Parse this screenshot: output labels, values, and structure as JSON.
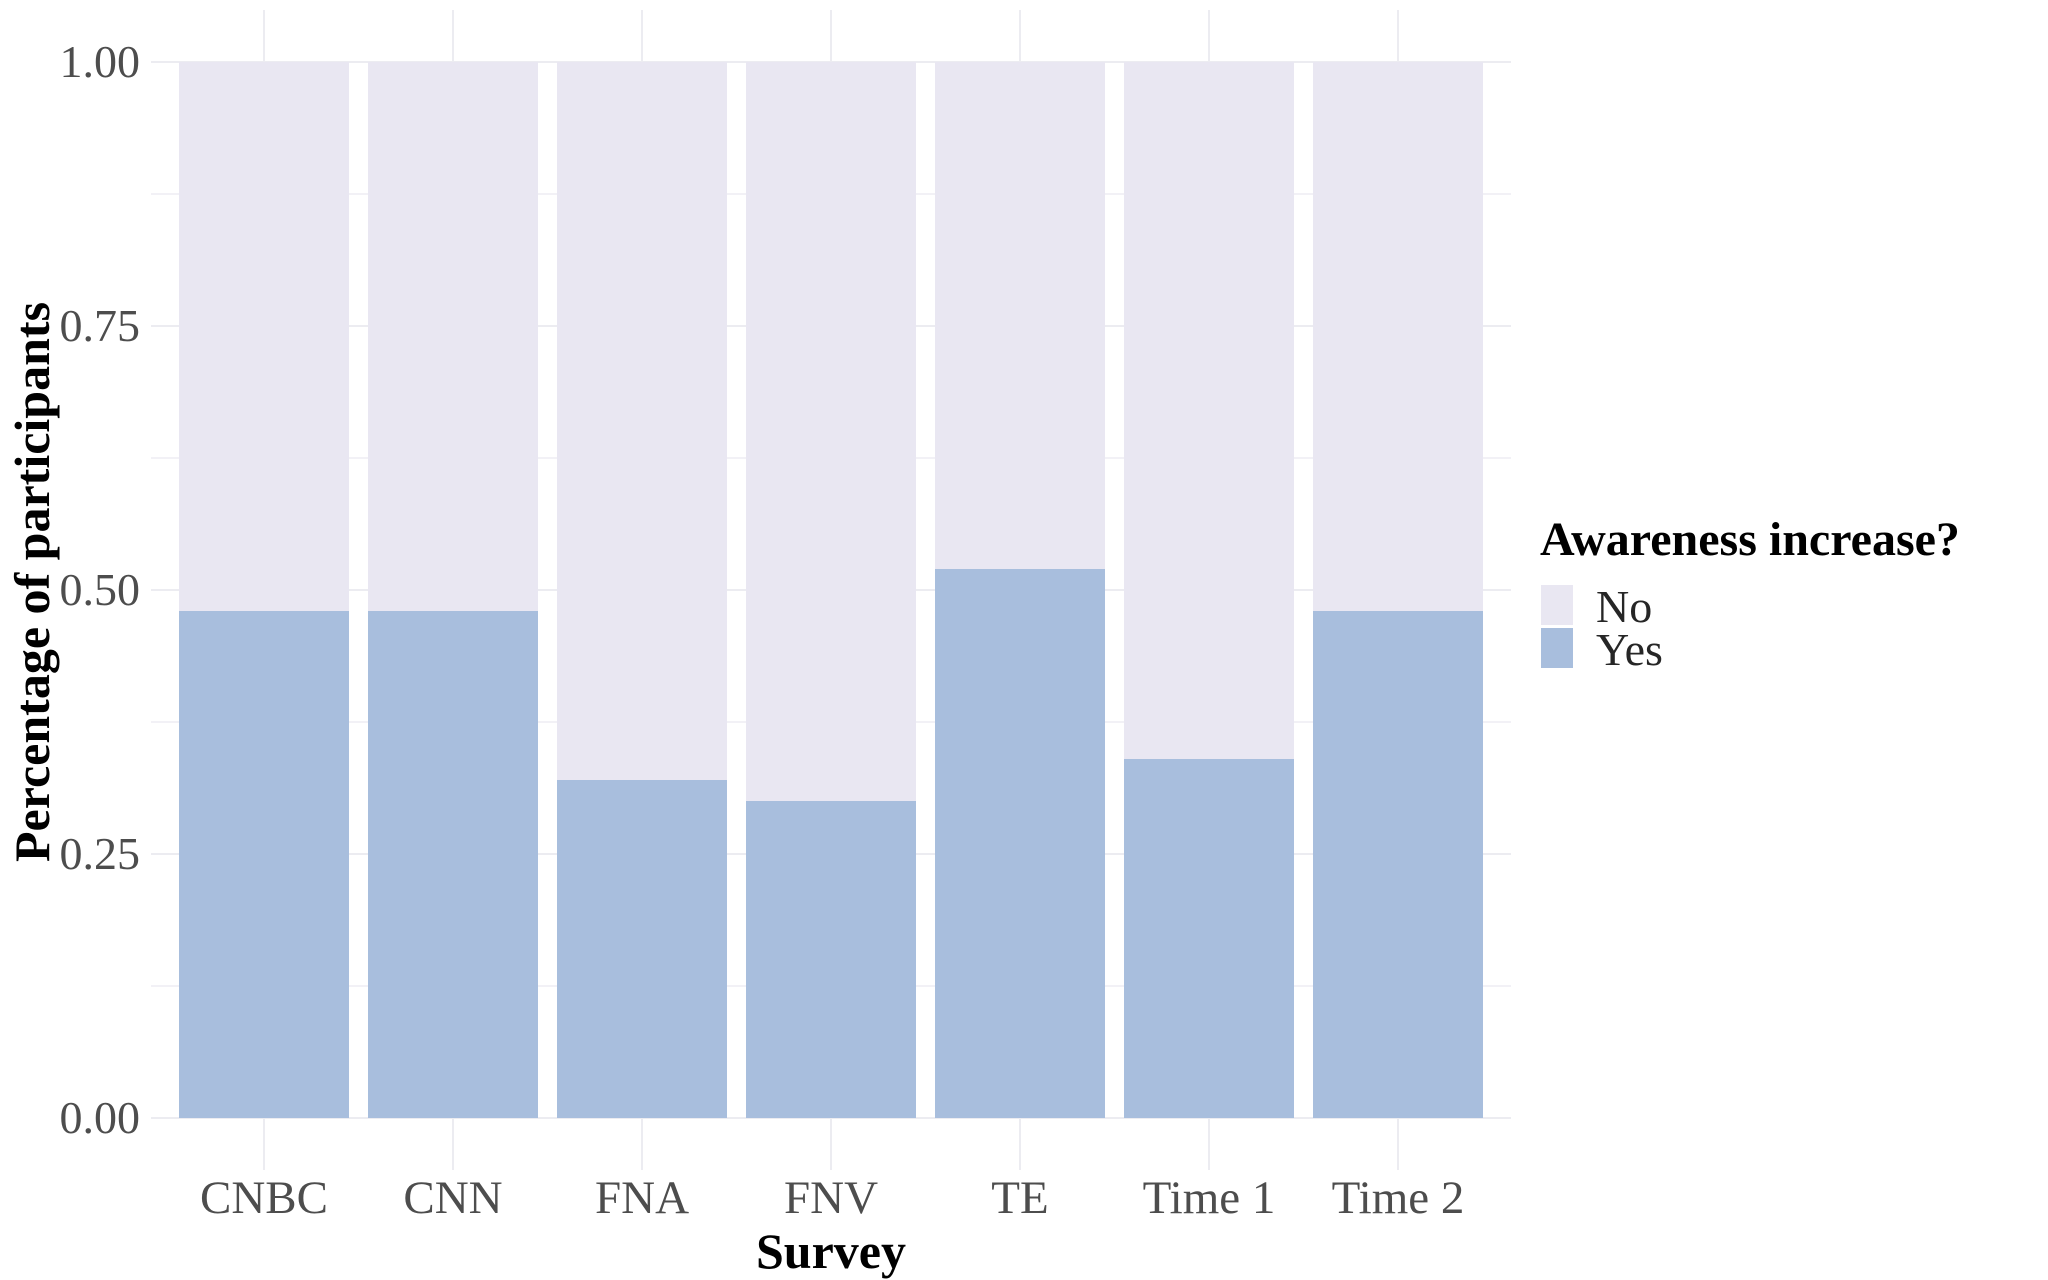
{
  "figure": {
    "y_axis": {
      "label": "Percentage of participants",
      "ticks": [
        {
          "label": "1.00",
          "value": 1.0
        },
        {
          "label": "0.75",
          "value": 0.75
        },
        {
          "label": "0.50",
          "value": 0.5
        },
        {
          "label": "0.25",
          "value": 0.25
        },
        {
          "label": "0.00",
          "value": 0.0
        }
      ],
      "minor_ticks": [
        0.875,
        0.625,
        0.375,
        0.125
      ]
    },
    "x_axis": {
      "label": "Survey"
    },
    "legend": {
      "title": "Awareness increase?",
      "entries": [
        {
          "label": "No",
          "color": "#e9e7f2"
        },
        {
          "label": "Yes",
          "color": "#a8bedd"
        }
      ]
    }
  },
  "chart_data": {
    "type": "bar",
    "stacked": true,
    "title": "",
    "xlabel": "Survey",
    "ylabel": "Percentage of participants",
    "categories": [
      "CNBC",
      "CNN",
      "FNA",
      "FNV",
      "TE",
      "Time 1",
      "Time 2"
    ],
    "series": [
      {
        "name": "Yes",
        "color": "#a8bedd",
        "values": [
          0.48,
          0.48,
          0.32,
          0.3,
          0.52,
          0.34,
          0.48
        ]
      },
      {
        "name": "No",
        "color": "#e9e7f2",
        "values": [
          0.52,
          0.52,
          0.68,
          0.7,
          0.48,
          0.66,
          0.52
        ]
      }
    ],
    "ylim": [
      0,
      1
    ],
    "yticks": [
      0,
      0.25,
      0.5,
      0.75,
      1.0
    ],
    "grid": true,
    "legend_title": "Awareness increase?",
    "legend_position": "right"
  }
}
